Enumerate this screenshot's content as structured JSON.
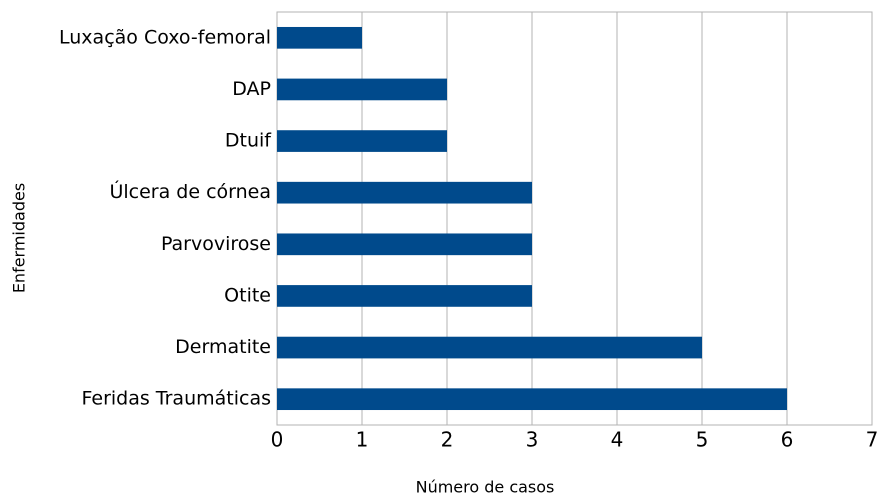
{
  "chart_data": {
    "type": "barh",
    "xlabel": "Número de casos",
    "ylabel": "Enfermidades",
    "categories": [
      "Luxação Coxo-femoral",
      "DAP",
      "Dtuif",
      "Úlcera de córnea",
      "Parvovirose",
      "Otite",
      "Dermatite",
      "Feridas Traumáticas"
    ],
    "values": [
      1,
      2,
      2,
      3,
      3,
      3,
      5,
      6
    ],
    "color": "#004a8c",
    "xlim": [
      0,
      7
    ],
    "xticks": [
      0,
      1,
      2,
      3,
      4,
      5,
      6,
      7
    ],
    "grid": true
  }
}
